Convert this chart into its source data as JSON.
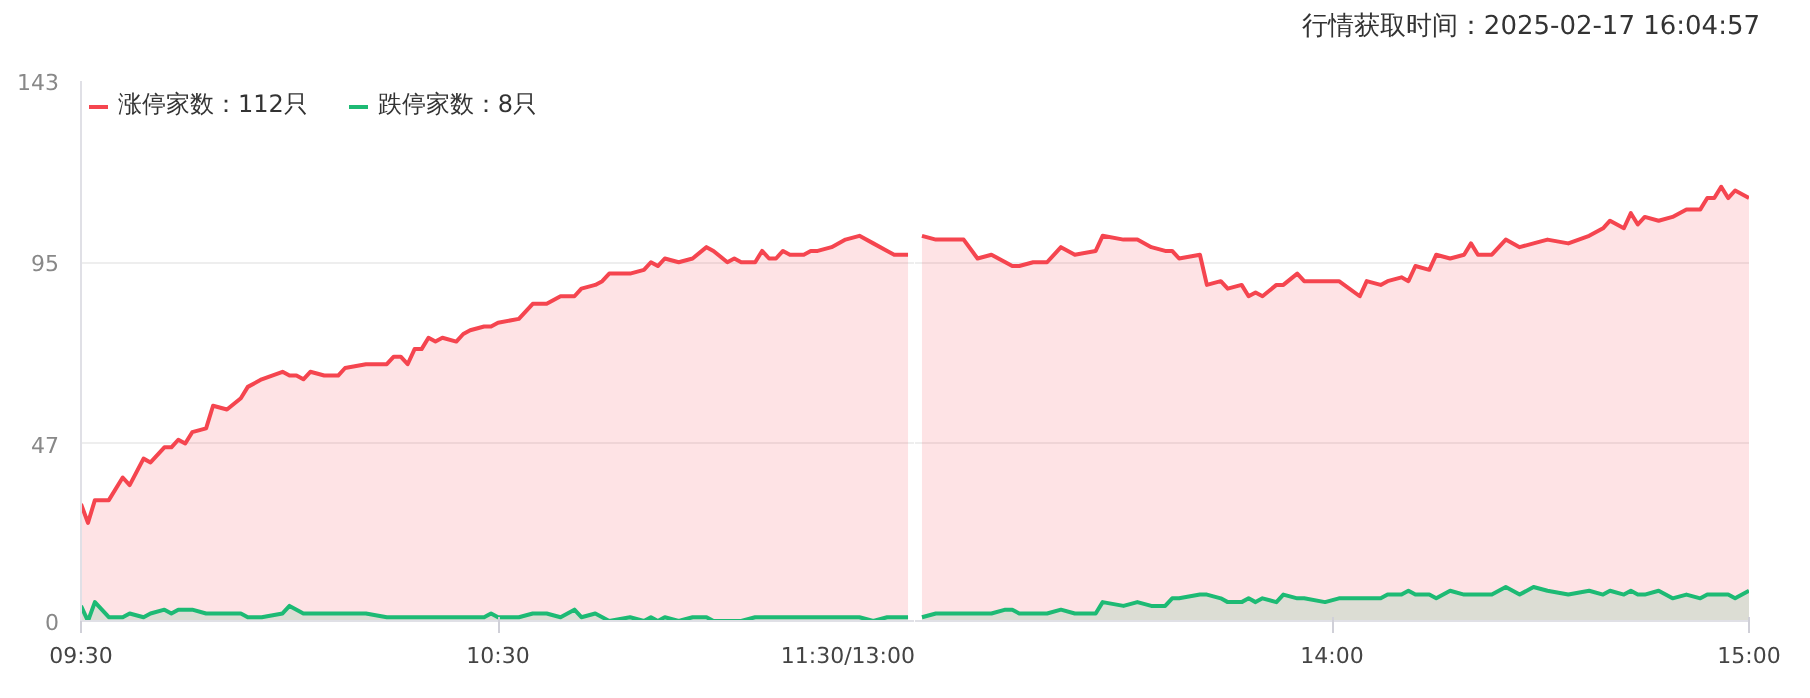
{
  "chart_data": [
    {
      "type": "area",
      "legend": "top left",
      "grid": "y",
      "x": [
        9.5,
        9.5167,
        9.5333,
        9.5667,
        9.6,
        9.6167,
        9.65,
        9.6667,
        9.7,
        9.7167,
        9.7333,
        9.75,
        9.7667,
        9.8,
        9.8167,
        9.85,
        9.8833,
        9.9,
        9.9333,
        9.9833,
        10,
        10.0167,
        10.0333,
        10.05,
        10.0833,
        10.1167,
        10.1333,
        10.1833,
        10.2333,
        10.25,
        10.2667,
        10.2833,
        10.3,
        10.3167,
        10.3333,
        10.35,
        10.3667,
        10.4,
        10.4167,
        10.4333,
        10.4667,
        10.4833,
        10.5,
        10.55,
        10.5833,
        10.6167,
        10.65,
        10.6833,
        10.7,
        10.7333,
        10.75,
        10.7667,
        10.8167,
        10.85,
        10.8667,
        10.8833,
        10.9,
        10.9333,
        10.9667,
        11,
        11.0167,
        11.05,
        11.0667,
        11.0833,
        11.1167,
        11.1333,
        11.15,
        11.1667,
        11.1833,
        11.2,
        11.2167,
        11.2333,
        11.25,
        11.2667,
        11.3,
        11.3333,
        11.3667,
        11.4,
        11.4333,
        11.45,
        11.4833
      ],
      "xlim": [
        9.5,
        11.5
      ],
      "xticks": [
        {
          "value": 9.5,
          "label": "09:30"
        },
        {
          "value": 10.5,
          "label": "10:30"
        },
        {
          "value": 11.5,
          "label": "11:30/13:00"
        }
      ],
      "ylim": [
        0,
        143
      ],
      "yticks": [
        0,
        47,
        95,
        143
      ],
      "series": [
        {
          "name": "涨停家数：112只",
          "color": "#f5454f",
          "values": [
            31,
            26,
            32,
            32,
            38,
            36,
            43,
            42,
            46,
            46,
            48,
            47,
            50,
            51,
            57,
            56,
            59,
            62,
            64,
            66,
            65,
            65,
            64,
            66,
            65,
            65,
            67,
            68,
            68,
            70,
            70,
            68,
            72,
            72,
            75,
            74,
            75,
            74,
            76,
            77,
            78,
            78,
            79,
            80,
            84,
            84,
            86,
            86,
            88,
            89,
            90,
            92,
            92,
            93,
            95,
            94,
            96,
            95,
            96,
            99,
            98,
            95,
            96,
            95,
            95,
            98,
            96,
            96,
            98,
            97,
            97,
            97,
            98,
            98,
            99,
            101,
            102,
            100,
            98,
            97,
            97
          ]
        },
        {
          "name": "跌停家数：8只",
          "color": "#1dba74",
          "values": [
            4,
            0,
            5,
            1,
            1,
            2,
            1,
            2,
            3,
            2,
            3,
            3,
            3,
            2,
            2,
            2,
            2,
            1,
            1,
            2,
            4,
            3,
            2,
            2,
            2,
            2,
            2,
            2,
            1,
            1,
            1,
            1,
            1,
            1,
            1,
            1,
            1,
            1,
            1,
            1,
            1,
            2,
            1,
            1,
            2,
            2,
            1,
            3,
            1,
            2,
            1,
            0,
            1,
            0,
            1,
            0,
            1,
            0,
            1,
            1,
            0,
            0,
            0,
            0,
            1,
            1,
            1,
            1,
            1,
            1,
            1,
            1,
            1,
            1,
            1,
            1,
            1,
            0,
            1,
            1,
            1
          ]
        }
      ]
    },
    {
      "type": "area",
      "grid": "y",
      "tick_labels": "x",
      "annotations": [
        "行情获取时间：2025-02-17 16:04:57"
      ],
      "x": [
        13.0167,
        13.05,
        13.1167,
        13.15,
        13.1833,
        13.2167,
        13.2333,
        13.25,
        13.2833,
        13.3167,
        13.35,
        13.3833,
        13.4333,
        13.45,
        13.5,
        13.5333,
        13.5667,
        13.6,
        13.6167,
        13.6333,
        13.6833,
        13.7,
        13.7333,
        13.75,
        13.7833,
        13.8,
        13.8167,
        13.8333,
        13.8667,
        13.8833,
        13.9167,
        13.9333,
        13.9833,
        14.0167,
        14.0667,
        14.0833,
        14.1167,
        14.1333,
        14.1667,
        14.1833,
        14.2,
        14.2333,
        14.25,
        14.2833,
        14.3167,
        14.3333,
        14.35,
        14.3833,
        14.4167,
        14.45,
        14.4833,
        14.5167,
        14.5667,
        14.6167,
        14.65,
        14.6667,
        14.7,
        14.7167,
        14.7333,
        14.75,
        14.7833,
        14.8167,
        14.85,
        14.8833,
        14.9,
        14.9167,
        14.9333,
        14.95,
        14.9667,
        15
      ],
      "xlim": [
        13,
        15
      ],
      "xticks": [
        {
          "value": 14,
          "label": "14:00"
        },
        {
          "value": 15,
          "label": "15:00"
        }
      ],
      "ylim": [
        0,
        143
      ],
      "yticks": [
        0,
        47,
        95,
        143
      ],
      "series": [
        {
          "color": "#f5454f",
          "values": [
            102,
            101,
            101,
            96,
            97,
            95,
            94,
            94,
            95,
            95,
            99,
            97,
            98,
            102,
            101,
            101,
            99,
            98,
            98,
            96,
            97,
            89,
            90,
            88,
            89,
            86,
            87,
            86,
            89,
            89,
            92,
            90,
            90,
            90,
            86,
            90,
            89,
            90,
            91,
            90,
            94,
            93,
            97,
            96,
            97,
            100,
            97,
            97,
            101,
            99,
            100,
            101,
            100,
            102,
            104,
            106,
            104,
            108,
            105,
            107,
            106,
            107,
            109,
            109,
            112,
            112,
            115,
            112,
            114,
            112
          ]
        },
        {
          "color": "#1dba74",
          "values": [
            1,
            2,
            2,
            2,
            2,
            3,
            3,
            2,
            2,
            2,
            3,
            2,
            2,
            5,
            4,
            5,
            4,
            4,
            6,
            6,
            7,
            7,
            6,
            5,
            5,
            6,
            5,
            6,
            5,
            7,
            6,
            6,
            5,
            6,
            6,
            6,
            6,
            7,
            7,
            8,
            7,
            7,
            6,
            8,
            7,
            7,
            7,
            7,
            9,
            7,
            9,
            8,
            7,
            8,
            7,
            8,
            7,
            8,
            7,
            7,
            8,
            6,
            7,
            6,
            7,
            7,
            7,
            7,
            6,
            8
          ]
        }
      ]
    }
  ]
}
